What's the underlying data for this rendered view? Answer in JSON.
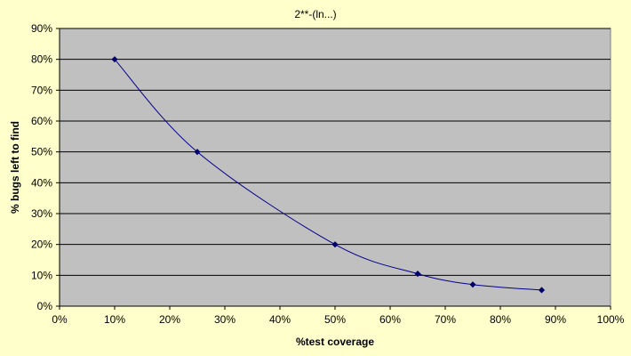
{
  "chart_data": {
    "type": "line",
    "title": "2**-(ln...)",
    "xlabel": "%test coverage",
    "ylabel": "% bugs left to find",
    "xlim": [
      0,
      100
    ],
    "ylim": [
      0,
      90
    ],
    "x_ticks": [
      "0%",
      "10%",
      "20%",
      "30%",
      "40%",
      "50%",
      "60%",
      "70%",
      "80%",
      "90%",
      "100%"
    ],
    "y_ticks": [
      "0%",
      "10%",
      "20%",
      "30%",
      "40%",
      "50%",
      "60%",
      "70%",
      "80%",
      "90%"
    ],
    "grid": "horizontal",
    "smooth": true,
    "series": [
      {
        "x": [
          10,
          25,
          50,
          65,
          75,
          87.5
        ],
        "y": [
          80,
          50,
          20,
          10.5,
          7,
          5.2
        ]
      }
    ],
    "colors": {
      "background": "#FFFFCC",
      "plot_area": "#C0C0C0",
      "line": "#00008B",
      "marker": "#00006B",
      "gridline": "#000000"
    }
  }
}
